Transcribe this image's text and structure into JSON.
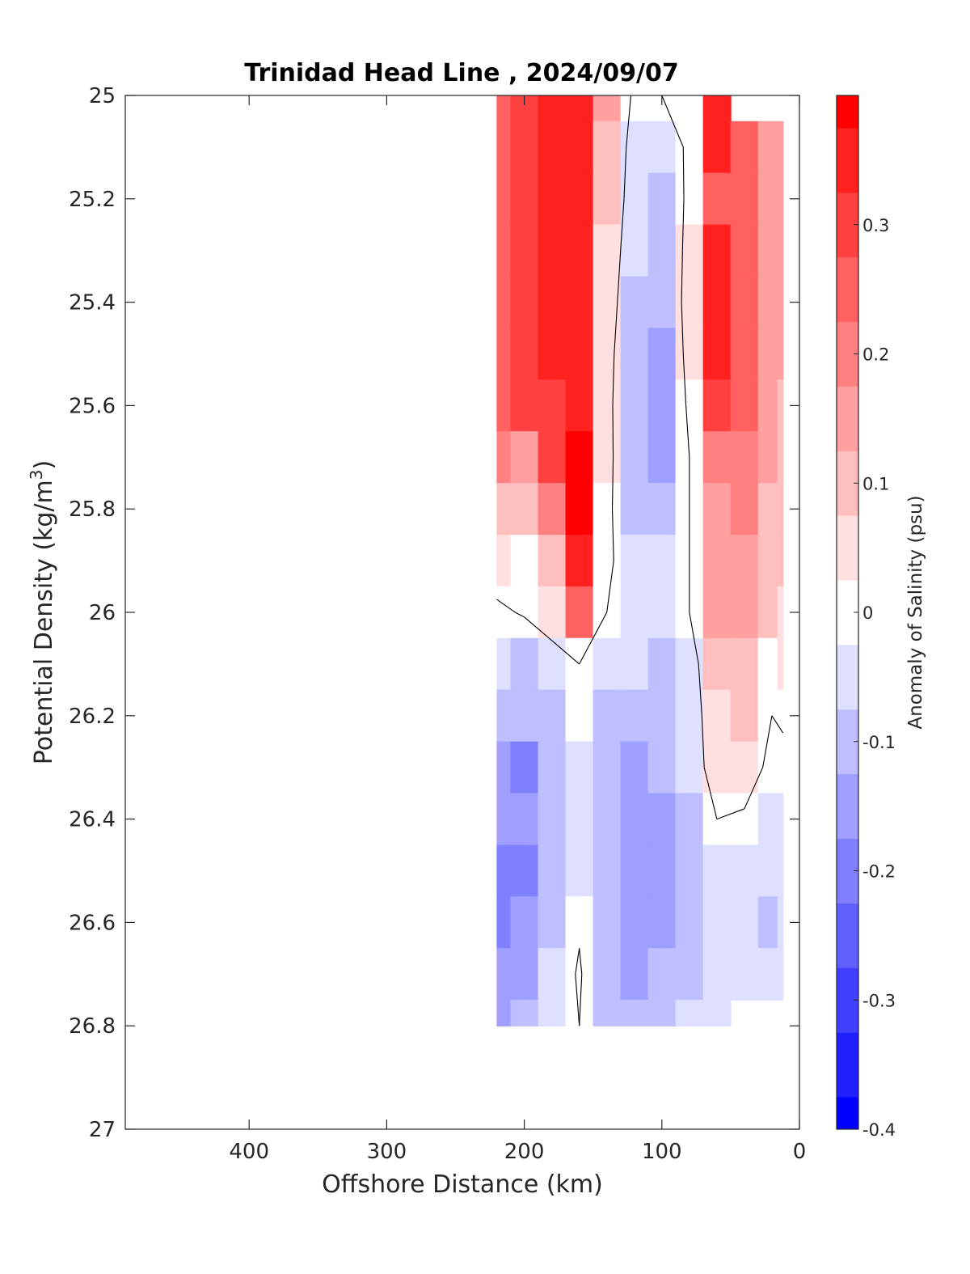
{
  "chart_data": {
    "type": "heatmap",
    "title": "Trinidad Head Line , 2024/09/07",
    "xlabel": "Offshore Distance (km)",
    "ylabel": "Potential Density (kg/m",
    "ylabel_sup": "3",
    "ylabel_close": ")",
    "xlim": [
      490,
      0
    ],
    "ylim": [
      25,
      27
    ],
    "x_reversed": true,
    "y_reversed": true,
    "grid": false,
    "xticks": [
      400,
      300,
      200,
      100,
      0
    ],
    "yticks": [
      25,
      25.2,
      25.4,
      25.6,
      25.8,
      26,
      26.2,
      26.4,
      26.6,
      26.8,
      27
    ],
    "colorbar": {
      "label": "Anomaly of Salinity (psu)",
      "range": [
        -0.4,
        0.4
      ],
      "step": 0.05,
      "ticks": [
        -0.4,
        -0.3,
        -0.2,
        -0.1,
        0,
        0.1,
        0.2,
        0.3
      ],
      "tick_labels": [
        "-0.4",
        "-0.3",
        "-0.2",
        "-0.1",
        "0",
        "0.1",
        "0.2",
        "0.3"
      ],
      "colors": [
        "#0000ff",
        "#2020ff",
        "#4040ff",
        "#6060ff",
        "#8080ff",
        "#9f9fff",
        "#bfbfff",
        "#dfdfff",
        "#ffffff",
        "#ffdfdf",
        "#ffbfbf",
        "#ff9f9f",
        "#ff8080",
        "#ff6060",
        "#ff4040",
        "#ff2020",
        "#ff0000"
      ]
    },
    "x": [
      220,
      200,
      180,
      160,
      140,
      120,
      100,
      80,
      60,
      40,
      20,
      12
    ],
    "y": [
      25,
      25.1,
      25.2,
      25.3,
      25.4,
      25.5,
      25.6,
      25.7,
      25.8,
      25.9,
      26,
      26.1,
      26.2,
      26.3,
      26.4,
      26.5,
      26.6,
      26.7,
      26.8
    ],
    "z": [
      [
        0.27,
        0.3,
        0.34,
        0.37,
        0.14,
        -0.02,
        0.0,
        0.02,
        0.33,
        null,
        null,
        null
      ],
      [
        0.27,
        0.3,
        0.34,
        0.37,
        0.12,
        -0.05,
        -0.07,
        0.02,
        0.33,
        0.26,
        0.16,
        0.16
      ],
      [
        0.26,
        0.29,
        0.33,
        0.37,
        0.1,
        -0.06,
        -0.08,
        0.02,
        0.27,
        0.26,
        0.16,
        0.16
      ],
      [
        0.26,
        0.29,
        0.33,
        0.37,
        0.07,
        -0.07,
        -0.09,
        0.03,
        0.33,
        0.26,
        0.16,
        0.16
      ],
      [
        0.26,
        0.29,
        0.33,
        0.37,
        0.05,
        -0.08,
        -0.1,
        0.04,
        0.36,
        0.27,
        0.16,
        0.16
      ],
      [
        0.27,
        0.29,
        0.33,
        0.37,
        0.04,
        -0.11,
        -0.14,
        0.04,
        0.33,
        0.25,
        0.16,
        0.16
      ],
      [
        0.26,
        0.28,
        0.32,
        0.37,
        0.03,
        -0.11,
        -0.14,
        0.02,
        0.29,
        0.23,
        0.14,
        0.12
      ],
      [
        0.2,
        0.16,
        0.28,
        0.38,
        0.03,
        -0.1,
        -0.13,
        0.0,
        0.22,
        0.2,
        0.13,
        0.12
      ],
      [
        0.12,
        0.08,
        0.22,
        0.38,
        0.02,
        -0.08,
        -0.09,
        0.0,
        0.17,
        0.19,
        0.12,
        0.11
      ],
      [
        0.06,
        0.02,
        0.12,
        0.33,
        0.02,
        -0.06,
        -0.07,
        0.0,
        0.14,
        0.16,
        0.1,
        0.1
      ],
      [
        -0.02,
        0.01,
        0.06,
        0.25,
        0.0,
        -0.06,
        -0.07,
        0.0,
        0.13,
        0.14,
        0.08,
        0.07
      ],
      [
        -0.04,
        -0.1,
        -0.05,
        0.0,
        -0.05,
        -0.07,
        -0.08,
        -0.04,
        0.08,
        0.09,
        0.02,
        0.03
      ],
      [
        -0.12,
        -0.12,
        -0.08,
        -0.01,
        -0.08,
        -0.12,
        -0.1,
        -0.05,
        0.06,
        0.09,
        0.0,
        0.01
      ],
      [
        -0.14,
        -0.18,
        -0.1,
        -0.05,
        -0.08,
        -0.14,
        -0.12,
        -0.07,
        0.06,
        0.04,
        -0.02,
        -0.02
      ],
      [
        -0.17,
        -0.17,
        -0.1,
        -0.06,
        -0.1,
        -0.14,
        -0.13,
        -0.09,
        0.0,
        -0.01,
        -0.06,
        -0.07
      ],
      [
        -0.18,
        -0.2,
        -0.11,
        -0.06,
        -0.1,
        -0.15,
        -0.17,
        -0.09,
        -0.06,
        -0.06,
        -0.06,
        -0.06
      ],
      [
        -0.18,
        -0.16,
        -0.1,
        -0.01,
        -0.11,
        -0.15,
        -0.17,
        -0.08,
        -0.05,
        -0.05,
        -0.08,
        -0.07
      ],
      [
        -0.17,
        -0.13,
        -0.06,
        0.01,
        -0.1,
        -0.13,
        -0.11,
        -0.08,
        -0.06,
        -0.05,
        -0.05,
        -0.05
      ],
      [
        -0.15,
        -0.1,
        -0.03,
        0.0,
        -0.08,
        -0.12,
        -0.1,
        -0.07,
        -0.06,
        null,
        null,
        null
      ]
    ]
  }
}
